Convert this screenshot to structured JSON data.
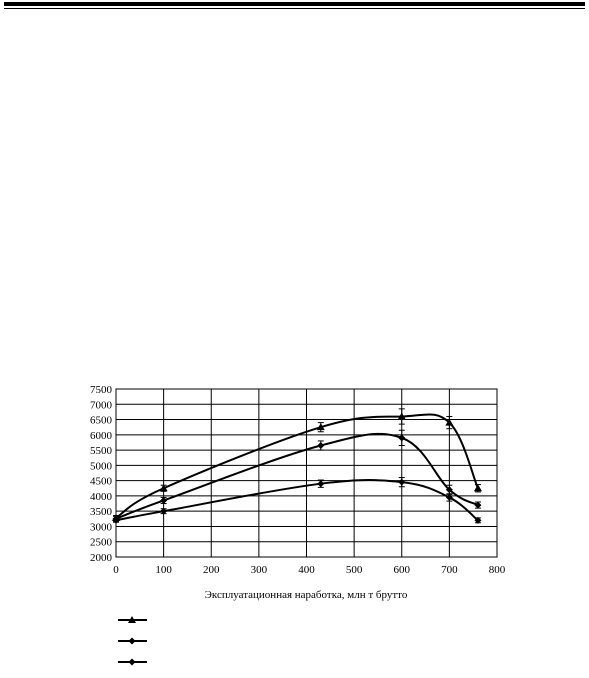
{
  "chart_data": {
    "type": "line",
    "xlabel": "Эксплуатационная наработка, млн т брутто",
    "ylabel": "",
    "xlim": [
      0,
      800
    ],
    "ylim": [
      2000,
      7500
    ],
    "xticks": [
      0,
      100,
      200,
      300,
      400,
      500,
      600,
      700,
      800
    ],
    "yticks": [
      2000,
      2500,
      3000,
      3500,
      4000,
      4500,
      5000,
      5500,
      6000,
      6500,
      7000,
      7500
    ],
    "grid": true,
    "legend_position": "bottom-left",
    "series": [
      {
        "marker": "triangle",
        "points": [
          [
            0,
            3280
          ],
          [
            100,
            4250
          ],
          [
            430,
            6250
          ],
          [
            600,
            6600
          ],
          [
            700,
            6400
          ],
          [
            760,
            4250
          ]
        ],
        "errors": [
          80,
          100,
          150,
          250,
          200,
          120
        ]
      },
      {
        "marker": "diamond",
        "points": [
          [
            0,
            3250
          ],
          [
            100,
            3850
          ],
          [
            430,
            5650
          ],
          [
            600,
            5900
          ],
          [
            700,
            4200
          ],
          [
            760,
            3700
          ]
        ],
        "errors": [
          80,
          100,
          150,
          250,
          150,
          100
        ]
      },
      {
        "marker": "diamond",
        "points": [
          [
            0,
            3200
          ],
          [
            100,
            3500
          ],
          [
            430,
            4400
          ],
          [
            600,
            4450
          ],
          [
            700,
            3950
          ],
          [
            760,
            3200
          ]
        ],
        "errors": [
          60,
          80,
          120,
          150,
          120,
          80
        ]
      }
    ]
  }
}
